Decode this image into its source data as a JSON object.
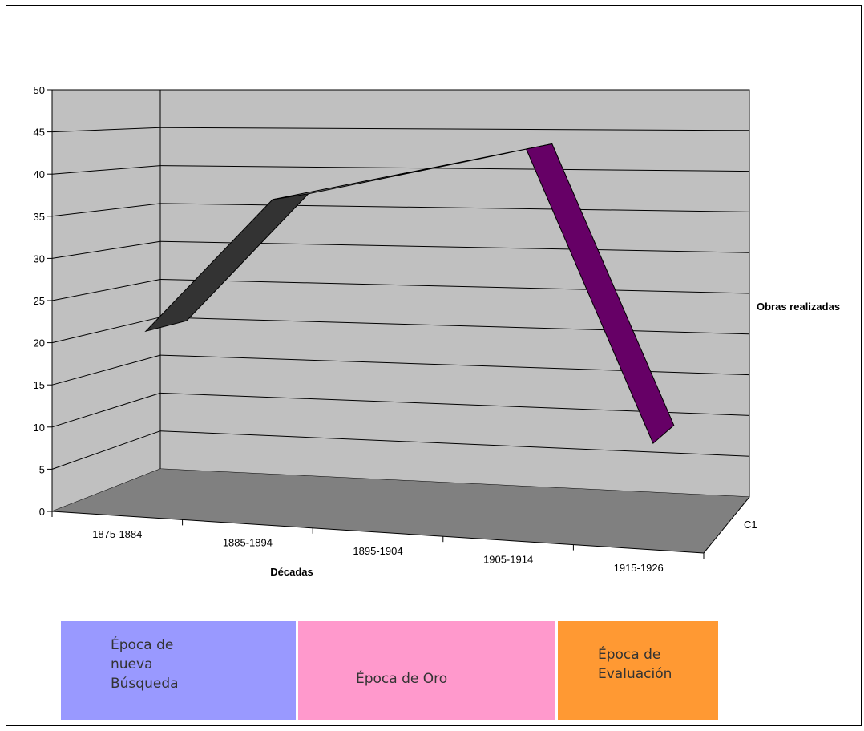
{
  "chart_data": {
    "type": "line",
    "style": "3d-ribbon",
    "categories": [
      "1875-1884",
      "1885-1894",
      "1895-1904",
      "1905-1914",
      "1915-1926"
    ],
    "series": [
      {
        "name": "C1",
        "values": [
          21,
          38,
          42,
          46,
          11
        ]
      }
    ],
    "segment_colors": [
      "#333333",
      "#808080",
      "#808080",
      "#660066"
    ],
    "xlabel": "Décadas",
    "ylabel": "Obras realizadas",
    "depth_label": "C1",
    "yticks": [
      0,
      5,
      10,
      15,
      20,
      25,
      30,
      35,
      40,
      45,
      50
    ],
    "ylim": [
      0,
      50
    ],
    "grid": true,
    "wall_color": "#c0c0c0",
    "floor_color": "#808080"
  },
  "eras": [
    {
      "label": "Época de nueva Búsqueda",
      "color": "#9999ff"
    },
    {
      "label": "Época de Oro",
      "color": "#ff99cc"
    },
    {
      "label": "Época de Evaluación",
      "color": "#ff9933"
    }
  ]
}
